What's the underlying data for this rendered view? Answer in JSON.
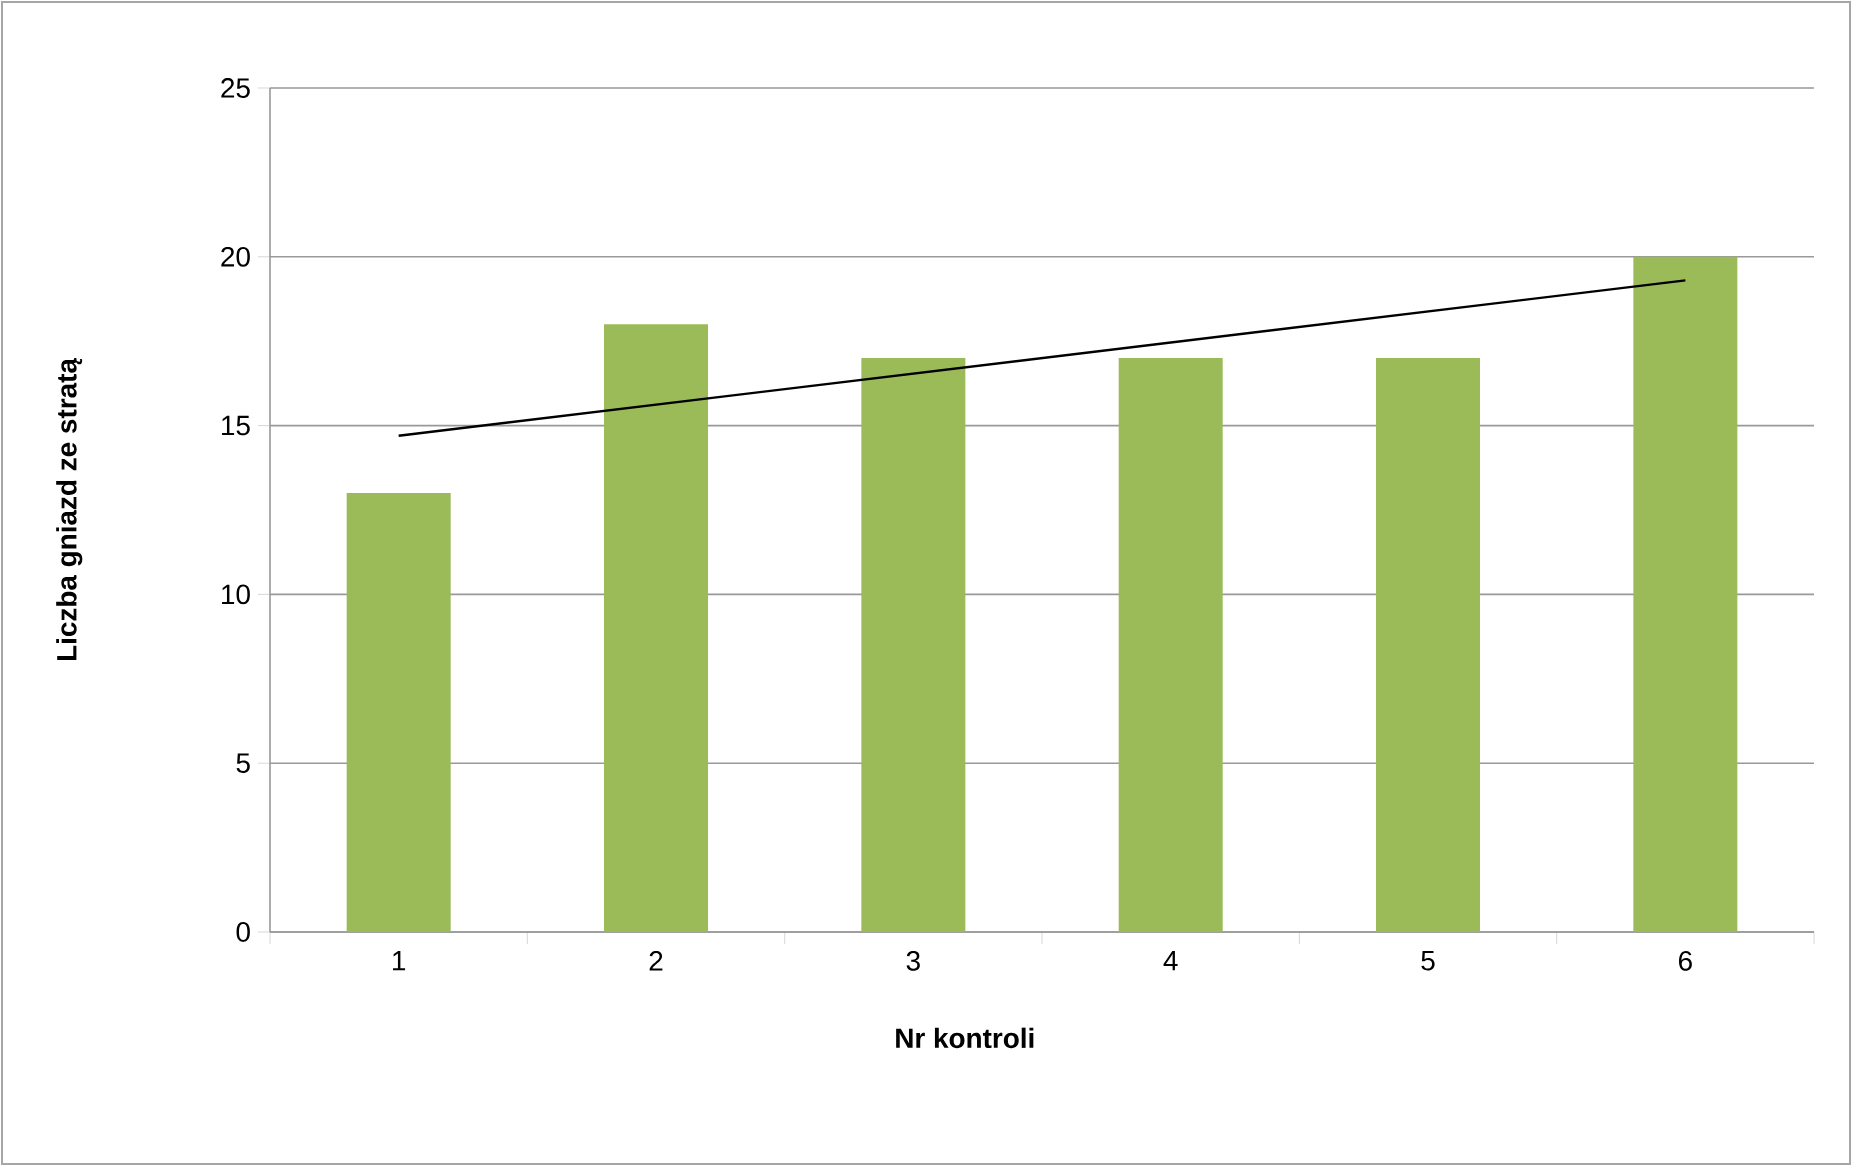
{
  "chart_data": {
    "type": "bar",
    "xlabel": "Nr kontroli",
    "ylabel": "Liczba gniazd ze stratą",
    "x": [
      1,
      2,
      3,
      4,
      5,
      6
    ],
    "series": [
      {
        "color": "#9bbb59",
        "values": [
          13,
          18,
          17,
          17,
          17,
          20
        ]
      },
      {
        "type": "line",
        "color": "#000000",
        "x": [
          1,
          6
        ],
        "values": [
          14.7,
          19.3
        ]
      }
    ],
    "xlim": [
      0.5,
      6.5
    ],
    "xticks": [
      1,
      2,
      3,
      4,
      5,
      6
    ],
    "ylim": [
      0,
      25
    ],
    "yticks": [
      0,
      5,
      10,
      15,
      20,
      25
    ],
    "grid": "y"
  }
}
